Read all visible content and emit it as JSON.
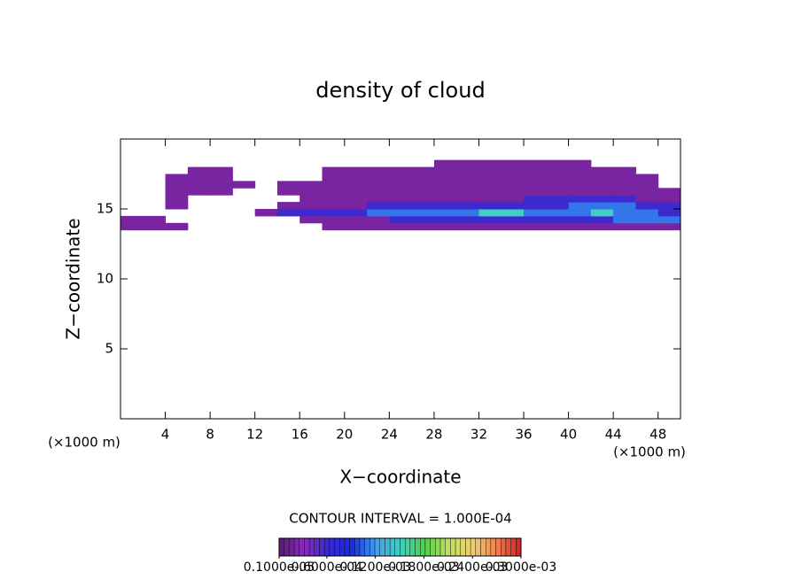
{
  "chart_data": {
    "type": "contour",
    "title": "density of cloud",
    "x_label": "X−coordinate",
    "y_label": "Z−coordinate",
    "x_unit": "(×1000 m)",
    "y_unit": "(×1000 m)",
    "contour_interval": "CONTOUR INTERVAL = 1.000E-04",
    "xlim": [
      0,
      50
    ],
    "ylim": [
      0,
      20
    ],
    "xticks": [
      4,
      8,
      12,
      16,
      20,
      24,
      28,
      32,
      36,
      40,
      44,
      48
    ],
    "yticks": [
      5,
      10,
      15
    ],
    "x": [
      1,
      3,
      5,
      7,
      9,
      11,
      13,
      15,
      17,
      19,
      21,
      23,
      25,
      27,
      29,
      31,
      33,
      35,
      37,
      39,
      41,
      43,
      45,
      47,
      49
    ],
    "y": [
      13.75,
      14.25,
      14.75,
      15.25,
      15.75,
      16.25,
      16.75,
      17.25,
      17.75,
      18.25
    ],
    "z": [
      [
        2e-05,
        2e-05,
        2e-05,
        null,
        null,
        null,
        null,
        null,
        null,
        2e-05,
        2e-05,
        2e-05,
        2e-05,
        2e-05,
        2e-05,
        2e-05,
        2e-05,
        2e-05,
        2e-05,
        2e-05,
        2e-05,
        2e-05,
        2e-05,
        2e-05,
        2e-05
      ],
      [
        2e-05,
        2e-05,
        null,
        null,
        null,
        null,
        null,
        null,
        2e-05,
        2e-05,
        2e-05,
        2e-05,
        6e-05,
        6e-05,
        6e-05,
        6e-05,
        6e-05,
        6e-05,
        6e-05,
        6e-05,
        6e-05,
        6e-05,
        0.00011,
        0.00011,
        0.00011
      ],
      [
        null,
        null,
        null,
        null,
        null,
        null,
        2e-05,
        6e-05,
        6e-05,
        6e-05,
        6e-05,
        0.00011,
        0.00011,
        0.00011,
        0.00011,
        0.00011,
        0.00015,
        0.00015,
        0.00011,
        0.00011,
        0.00011,
        0.00015,
        0.00011,
        0.00011,
        6e-05
      ],
      [
        null,
        null,
        2e-05,
        null,
        null,
        null,
        null,
        2e-05,
        2e-05,
        2e-05,
        2e-05,
        6e-05,
        6e-05,
        6e-05,
        6e-05,
        6e-05,
        6e-05,
        6e-05,
        6e-05,
        6e-05,
        0.00011,
        0.00011,
        0.00011,
        6e-05,
        6e-05
      ],
      [
        null,
        null,
        2e-05,
        null,
        null,
        null,
        null,
        null,
        2e-05,
        2e-05,
        2e-05,
        2e-05,
        2e-05,
        2e-05,
        2e-05,
        2e-05,
        2e-05,
        2e-05,
        6e-05,
        6e-05,
        6e-05,
        6e-05,
        6e-05,
        2e-05,
        2e-05
      ],
      [
        null,
        null,
        2e-05,
        2e-05,
        2e-05,
        null,
        null,
        2e-05,
        2e-05,
        2e-05,
        2e-05,
        2e-05,
        2e-05,
        2e-05,
        2e-05,
        2e-05,
        2e-05,
        2e-05,
        2e-05,
        2e-05,
        2e-05,
        2e-05,
        2e-05,
        2e-05,
        2e-05
      ],
      [
        null,
        null,
        2e-05,
        2e-05,
        2e-05,
        2e-05,
        null,
        2e-05,
        2e-05,
        2e-05,
        2e-05,
        2e-05,
        2e-05,
        2e-05,
        2e-05,
        2e-05,
        2e-05,
        2e-05,
        2e-05,
        2e-05,
        2e-05,
        2e-05,
        2e-05,
        2e-05,
        null
      ],
      [
        null,
        null,
        2e-05,
        2e-05,
        2e-05,
        null,
        null,
        null,
        null,
        2e-05,
        2e-05,
        2e-05,
        2e-05,
        2e-05,
        2e-05,
        2e-05,
        2e-05,
        2e-05,
        2e-05,
        2e-05,
        2e-05,
        2e-05,
        2e-05,
        2e-05,
        null
      ],
      [
        null,
        null,
        null,
        2e-05,
        2e-05,
        null,
        null,
        null,
        null,
        2e-05,
        2e-05,
        2e-05,
        2e-05,
        2e-05,
        2e-05,
        2e-05,
        2e-05,
        2e-05,
        2e-05,
        2e-05,
        2e-05,
        2e-05,
        2e-05,
        null,
        null
      ],
      [
        null,
        null,
        null,
        null,
        null,
        null,
        null,
        null,
        null,
        null,
        null,
        null,
        null,
        null,
        2e-05,
        2e-05,
        2e-05,
        2e-05,
        2e-05,
        2e-05,
        2e-05,
        null,
        null,
        null,
        null
      ]
    ],
    "clim": [
      1e-06,
      0.0003
    ],
    "colormap": [
      "#5a1a7a",
      "#8a2ab8",
      "#3a2ad0",
      "#1a2ae0",
      "#40a0f0",
      "#40d0c0",
      "#50d050",
      "#c0e060",
      "#f0d070",
      "#f08050",
      "#d02020"
    ],
    "colorbar_ticks": [
      {
        "value": 1e-06,
        "label": "0.1000e-05"
      },
      {
        "value": 6e-05,
        "label": "0.6000e-04"
      },
      {
        "value": 0.00012,
        "label": "0.1200e-03"
      },
      {
        "value": 0.00018,
        "label": "0.1800e-03"
      },
      {
        "value": 0.00024,
        "label": "0.2400e-03"
      },
      {
        "value": 0.0003,
        "label": "0.3000e-03"
      }
    ]
  }
}
